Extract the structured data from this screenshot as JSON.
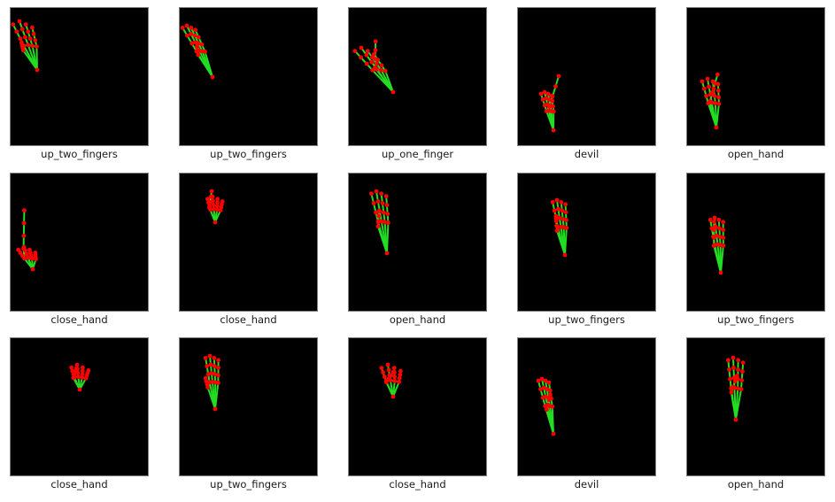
{
  "colors": {
    "bone": "#22dd22",
    "joint": "#ff0000",
    "background": "#000000"
  },
  "samples": [
    {
      "label": "up_two_fingers"
    },
    {
      "label": "up_two_fingers"
    },
    {
      "label": "up_one_finger"
    },
    {
      "label": "devil"
    },
    {
      "label": "open_hand"
    },
    {
      "label": "close_hand"
    },
    {
      "label": "close_hand"
    },
    {
      "label": "open_hand"
    },
    {
      "label": "up_two_fingers"
    },
    {
      "label": "up_two_fingers"
    },
    {
      "label": "close_hand"
    },
    {
      "label": "up_two_fingers"
    },
    {
      "label": "close_hand"
    },
    {
      "label": "devil"
    },
    {
      "label": "open_hand"
    }
  ]
}
